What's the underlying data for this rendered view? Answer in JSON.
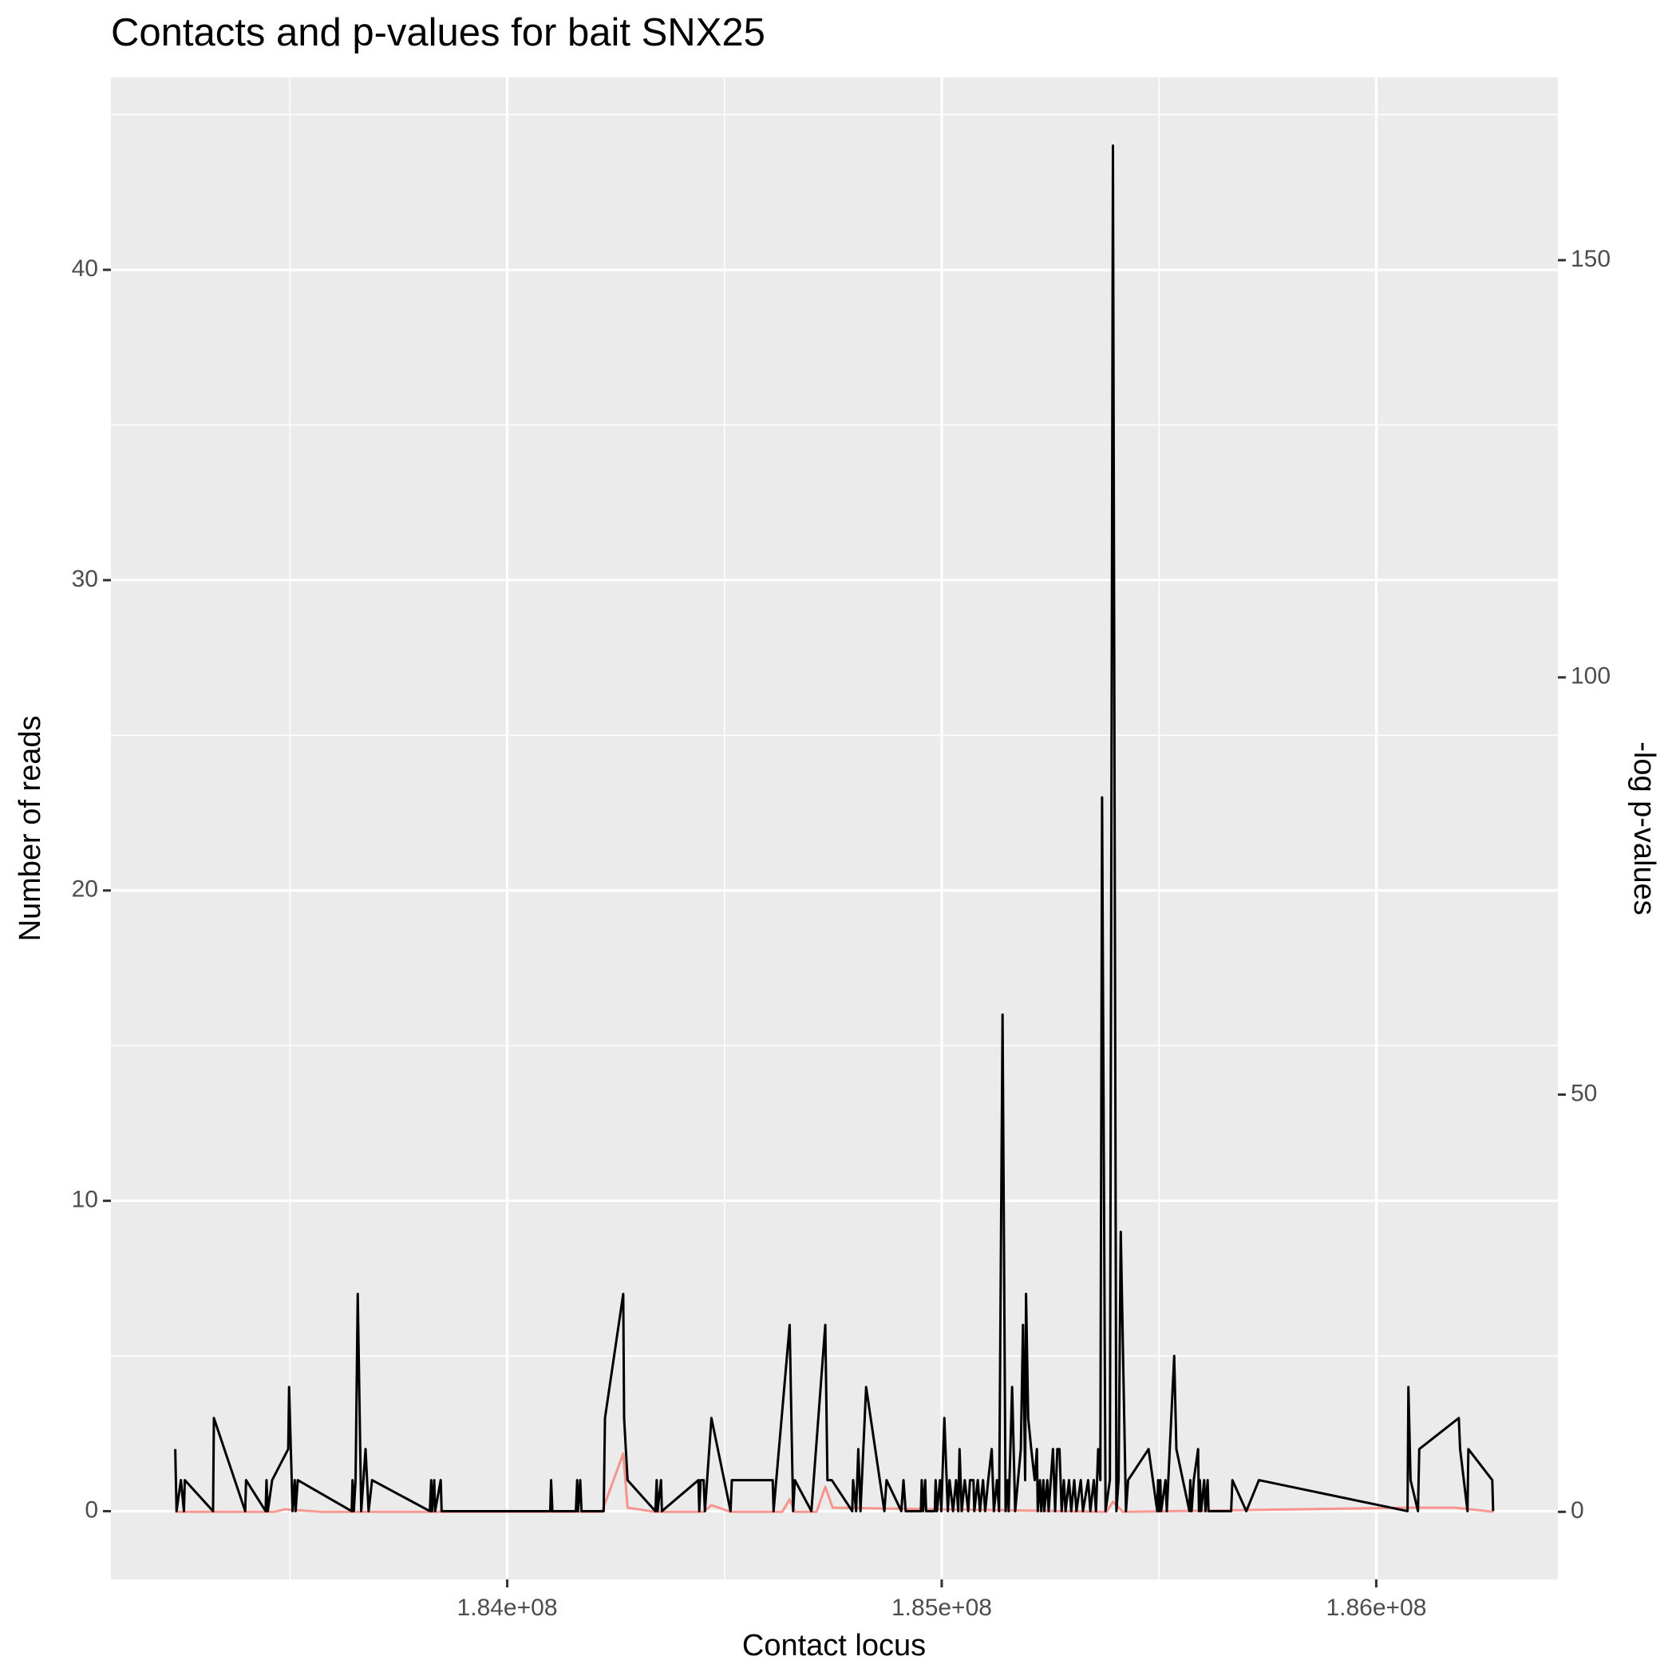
{
  "chart_data": {
    "type": "line",
    "title": "Contacts and p-values for bait SNX25",
    "x_label": "Contact locus",
    "y_label": "Number of reads",
    "y2_label": "-log p-values",
    "xlim": [
      183088000,
      186418000
    ],
    "ylim": [
      -2.2,
      46.2
    ],
    "y2lim": [
      -8.1,
      171.9
    ],
    "xticks": [
      {
        "value": 184000000,
        "label": "1.84e+08"
      },
      {
        "value": 185000000,
        "label": "1.85e+08"
      },
      {
        "value": 186000000,
        "label": "1.86e+08"
      }
    ],
    "xminor": [
      183500000,
      184500000,
      185500000,
      186000000
    ],
    "yticks": [
      0,
      10,
      20,
      30,
      40
    ],
    "yminor": [
      5,
      15,
      25,
      35,
      45
    ],
    "y2ticks": [
      0,
      50,
      100,
      150
    ],
    "grid": true,
    "series": [
      {
        "color": "#000000",
        "x": [
          183236000,
          183239000,
          183249000,
          183256000,
          183258000,
          183323000,
          183325000,
          183397000,
          183399000,
          183444000,
          183446000,
          183449000,
          183459000,
          183496000,
          183498000,
          183506000,
          183511000,
          183513000,
          183518000,
          183642000,
          183644000,
          183647000,
          183651000,
          183656000,
          183664000,
          183674000,
          183681000,
          183689000,
          183822000,
          183825000,
          183827000,
          183832000,
          183834000,
          183847000,
          183849000,
          184099000,
          184101000,
          184104000,
          184158000,
          184161000,
          184163000,
          184168000,
          184171000,
          184222000,
          184225000,
          184267000,
          184269000,
          184277000,
          184341000,
          184344000,
          184346000,
          184354000,
          184356000,
          184440000,
          184442000,
          184445000,
          184452000,
          184455000,
          184470000,
          184514000,
          184517000,
          184522000,
          184611000,
          184613000,
          184650000,
          184658000,
          184662000,
          184700000,
          184732000,
          184737000,
          184747000,
          184794000,
          184796000,
          184803000,
          184808000,
          184813000,
          184826000,
          184868000,
          184873000,
          184907000,
          184912000,
          184917000,
          184952000,
          184954000,
          184957000,
          184962000,
          184964000,
          184984000,
          184986000,
          184989000,
          184996000,
          184999000,
          185006000,
          185014000,
          185018000,
          185026000,
          185033000,
          185038000,
          185041000,
          185046000,
          185053000,
          185061000,
          185065000,
          185073000,
          185075000,
          185083000,
          185088000,
          185095000,
          185100000,
          185107000,
          185115000,
          185120000,
          185127000,
          185132000,
          185140000,
          185147000,
          185152000,
          185154000,
          185162000,
          185169000,
          185182000,
          185187000,
          185192000,
          185194000,
          185199000,
          185206000,
          185214000,
          185219000,
          185221000,
          185226000,
          185229000,
          185234000,
          185236000,
          185243000,
          185246000,
          185251000,
          185256000,
          185261000,
          185266000,
          185271000,
          185276000,
          185281000,
          185285000,
          185293000,
          185298000,
          185305000,
          185310000,
          185320000,
          185325000,
          185337000,
          185342000,
          185350000,
          185355000,
          185360000,
          185365000,
          185369000,
          185377000,
          185387000,
          185394000,
          185402000,
          185407000,
          185412000,
          185424000,
          185429000,
          185476000,
          185496000,
          185498000,
          185500000,
          185503000,
          185505000,
          185515000,
          185518000,
          185535000,
          185540000,
          185570000,
          185572000,
          185575000,
          185580000,
          185590000,
          185592000,
          185594000,
          185597000,
          185604000,
          185607000,
          185612000,
          185614000,
          185666000,
          185669000,
          185701000,
          185730000,
          186072000,
          186074000,
          186079000,
          186096000,
          186099000,
          186190000,
          186193000,
          186210000,
          186212000,
          186267000,
          186269000
        ],
        "values": [
          2,
          0,
          1,
          0,
          1,
          0,
          3,
          0,
          1,
          0,
          1,
          0,
          1,
          2,
          4,
          0,
          1,
          0,
          1,
          0,
          1,
          0,
          1,
          7,
          0,
          2,
          0,
          1,
          0,
          1,
          0,
          1,
          0,
          1,
          0,
          0,
          1,
          0,
          0,
          1,
          0,
          1,
          0,
          0,
          3,
          7,
          3,
          1,
          0,
          1,
          0,
          1,
          0,
          1,
          0,
          1,
          1,
          0,
          3,
          0,
          1,
          1,
          1,
          0,
          6,
          0,
          1,
          0,
          6,
          1,
          1,
          0,
          1,
          0,
          2,
          0,
          4,
          0,
          1,
          0,
          1,
          0,
          0,
          1,
          0,
          1,
          0,
          0,
          1,
          0,
          1,
          0,
          3,
          0,
          1,
          0,
          1,
          0,
          2,
          0,
          1,
          0,
          1,
          1,
          0,
          1,
          0,
          1,
          0,
          1,
          2,
          0,
          1,
          0,
          16,
          0,
          1,
          0,
          4,
          0,
          2,
          6,
          1,
          7,
          3,
          2,
          1,
          2,
          0,
          1,
          0,
          1,
          0,
          1,
          0,
          1,
          2,
          0,
          2,
          2,
          0,
          1,
          0,
          1,
          0,
          1,
          0,
          1,
          0,
          1,
          0,
          1,
          0,
          2,
          1,
          23,
          0,
          1,
          44,
          0,
          1,
          9,
          0,
          1,
          2,
          0,
          1,
          0,
          1,
          0,
          1,
          0,
          5,
          2,
          0,
          1,
          0,
          1,
          2,
          0,
          1,
          0,
          1,
          0,
          1,
          0,
          0,
          1,
          0,
          1,
          0,
          4,
          1,
          0,
          2,
          3,
          2,
          0,
          2,
          1,
          0
        ]
      },
      {
        "color": "#F8766D",
        "axis": "y2",
        "x": [
          183236000,
          183464000,
          183488000,
          183575000,
          184218000,
          184267000,
          184277000,
          184341000,
          184452000,
          184470000,
          184514000,
          184633000,
          184650000,
          184662000,
          184712000,
          184732000,
          184749000,
          185379000,
          185394000,
          185417000,
          186072000,
          186183000,
          186269000
        ],
        "values": [
          0,
          0,
          0.3,
          0,
          0,
          7,
          0.5,
          0,
          0,
          0.8,
          0,
          0,
          1.5,
          0,
          0,
          3,
          0.5,
          0,
          1.2,
          0,
          0.5,
          0.5,
          0
        ]
      }
    ]
  }
}
